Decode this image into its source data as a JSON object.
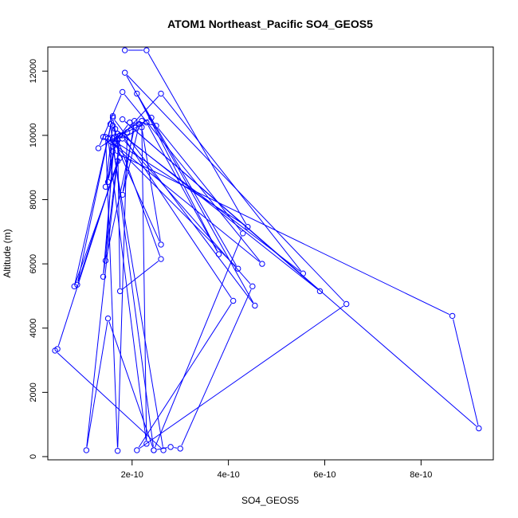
{
  "chart_data": {
    "type": "line",
    "title": "ATOM1 Northeast_Pacific SO4_GEOS5",
    "xlabel": "SO4_GEOS5",
    "ylabel": "Altitude (m)",
    "xlim": [
      2.5e-11,
      9.5e-10
    ],
    "ylim": [
      -100,
      12750
    ],
    "x_ticks": [
      {
        "value": 2e-10,
        "label": "2e-10"
      },
      {
        "value": 4e-10,
        "label": "4e-10"
      },
      {
        "value": 6e-10,
        "label": "6e-10"
      },
      {
        "value": 8e-10,
        "label": "8e-10"
      }
    ],
    "y_ticks": [
      {
        "value": 0,
        "label": "0"
      },
      {
        "value": 2000,
        "label": "2000"
      },
      {
        "value": 4000,
        "label": "4000"
      },
      {
        "value": 6000,
        "label": "6000"
      },
      {
        "value": 8000,
        "label": "8000"
      },
      {
        "value": 10000,
        "label": "10000"
      },
      {
        "value": 12000,
        "label": "12000"
      }
    ],
    "series_color": "#0000ff",
    "marker": "open-circle",
    "grid": false,
    "legend": "none",
    "points": [
      [
        1.85e-10,
        12650
      ],
      [
        2.3e-10,
        12650
      ],
      [
        4.4e-10,
        7150
      ],
      [
        1.65e-10,
        9800
      ],
      [
        1.95e-10,
        10400
      ],
      [
        2.15e-10,
        10350
      ],
      [
        1.8e-10,
        8150
      ],
      [
        2.05e-10,
        10450
      ],
      [
        2.5e-10,
        10300
      ],
      [
        4.3e-10,
        6950
      ],
      [
        2.45e-10,
        200
      ],
      [
        2.8e-10,
        300
      ],
      [
        3e-10,
        250
      ],
      [
        4.5e-10,
        5300
      ],
      [
        1.8e-10,
        9900
      ],
      [
        2.2e-10,
        10250
      ],
      [
        2.6e-10,
        6600
      ],
      [
        1.65e-10,
        9750
      ],
      [
        1.45e-10,
        8400
      ],
      [
        1.6e-10,
        10300
      ],
      [
        2.6e-10,
        6150
      ],
      [
        1.75e-10,
        5150
      ],
      [
        1.7e-10,
        9850
      ],
      [
        2.6e-10,
        11300
      ],
      [
        5.55e-10,
        5700
      ],
      [
        1.8e-10,
        10000
      ],
      [
        4.1e-10,
        4850
      ],
      [
        2.1e-10,
        200
      ],
      [
        6.45e-10,
        4750
      ],
      [
        1.85e-10,
        11950
      ],
      [
        4.55e-10,
        4700
      ],
      [
        1.6e-10,
        10550
      ],
      [
        1.75e-10,
        9300
      ],
      [
        8e-11,
        5300
      ],
      [
        1.6e-10,
        10600
      ],
      [
        8.6e-11,
        5350
      ],
      [
        1.7e-10,
        9200
      ],
      [
        4.5e-11,
        3350
      ],
      [
        4e-11,
        3300
      ],
      [
        2.65e-10,
        200
      ],
      [
        1.6e-10,
        9650
      ],
      [
        1.4e-10,
        9950
      ],
      [
        1.9e-10,
        10100
      ],
      [
        1.7e-10,
        180
      ],
      [
        1.45e-10,
        9950
      ],
      [
        4.7e-10,
        6000
      ],
      [
        1.8e-10,
        11350
      ],
      [
        1.3e-10,
        9600
      ],
      [
        2.2e-10,
        10450
      ],
      [
        2.3e-10,
        400
      ],
      [
        1.5e-10,
        9900
      ],
      [
        4.2e-10,
        5850
      ],
      [
        2.1e-10,
        11300
      ],
      [
        3.8e-10,
        6300
      ],
      [
        2.3e-10,
        10400
      ],
      [
        1.6e-10,
        9900
      ],
      [
        1.5e-10,
        8550
      ],
      [
        1.7e-10,
        10050
      ],
      [
        1.55e-10,
        10350
      ],
      [
        2.45e-10,
        200
      ],
      [
        1.5e-10,
        4300
      ],
      [
        1.05e-10,
        200
      ],
      [
        1.75e-10,
        10000
      ],
      [
        1.4e-10,
        5600
      ],
      [
        1.65e-10,
        10200
      ],
      [
        5.9e-10,
        5150
      ],
      [
        1.8e-10,
        10500
      ],
      [
        9.2e-10,
        880
      ],
      [
        8.65e-10,
        4380
      ],
      [
        1.6e-10,
        9500
      ],
      [
        1.45e-10,
        6100
      ],
      [
        2.05e-10,
        10250
      ],
      [
        2.4e-10,
        10550
      ]
    ]
  }
}
